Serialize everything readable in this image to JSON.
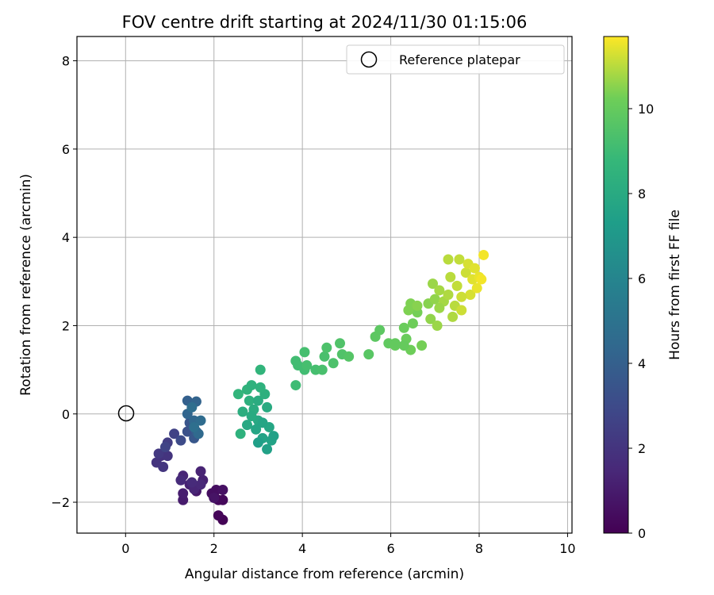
{
  "chart_data": {
    "type": "scatter",
    "title": "FOV centre drift starting at 2024/11/30 01:15:06",
    "xlabel": "Angular distance from reference (arcmin)",
    "ylabel": "Rotation from reference (arcmin)",
    "xlim": [
      -1.1,
      10.1
    ],
    "ylim": [
      -2.7,
      8.55
    ],
    "xticks": [
      "0",
      "2",
      "4",
      "6",
      "8",
      "10"
    ],
    "yticks": [
      "−2",
      "0",
      "2",
      "4",
      "6",
      "8"
    ],
    "grid": true,
    "legend": {
      "placement": "top-right",
      "entries": [
        "Reference platepar"
      ]
    },
    "reference_point": {
      "x": 0,
      "y": 0,
      "label": "Reference platepar"
    },
    "colorbar": {
      "label": "Hours from first FF file",
      "range": [
        0,
        11.7
      ],
      "ticks": [
        "0",
        "2",
        "4",
        "6",
        "8",
        "10"
      ],
      "colormap": "viridis"
    },
    "points": [
      {
        "x": 2.2,
        "y": -2.4,
        "t": 0.1
      },
      {
        "x": 2.1,
        "y": -2.3,
        "t": 0.2
      },
      {
        "x": 2.1,
        "y": -1.95,
        "t": 0.3
      },
      {
        "x": 2.2,
        "y": -1.95,
        "t": 0.3
      },
      {
        "x": 2.0,
        "y": -1.85,
        "t": 0.4
      },
      {
        "x": 1.95,
        "y": -1.8,
        "t": 0.5
      },
      {
        "x": 2.05,
        "y": -1.72,
        "t": 0.5
      },
      {
        "x": 2.2,
        "y": -1.72,
        "t": 0.6
      },
      {
        "x": 2.0,
        "y": -1.9,
        "t": 0.7
      },
      {
        "x": 1.6,
        "y": -1.75,
        "t": 0.9
      },
      {
        "x": 1.3,
        "y": -1.95,
        "t": 1.0
      },
      {
        "x": 1.3,
        "y": -1.8,
        "t": 1.1
      },
      {
        "x": 1.45,
        "y": -1.6,
        "t": 1.2
      },
      {
        "x": 1.75,
        "y": -1.5,
        "t": 1.2
      },
      {
        "x": 1.7,
        "y": -1.3,
        "t": 1.3
      },
      {
        "x": 1.3,
        "y": -1.4,
        "t": 1.4
      },
      {
        "x": 1.55,
        "y": -1.7,
        "t": 1.4
      },
      {
        "x": 1.7,
        "y": -1.6,
        "t": 1.5
      },
      {
        "x": 1.25,
        "y": -1.5,
        "t": 1.6
      },
      {
        "x": 1.5,
        "y": -1.55,
        "t": 1.6
      },
      {
        "x": 0.8,
        "y": -0.95,
        "t": 1.9
      },
      {
        "x": 0.95,
        "y": -0.95,
        "t": 2.0
      },
      {
        "x": 0.7,
        "y": -1.1,
        "t": 2.0
      },
      {
        "x": 0.85,
        "y": -1.2,
        "t": 2.1
      },
      {
        "x": 0.75,
        "y": -0.9,
        "t": 2.2
      },
      {
        "x": 0.95,
        "y": -0.65,
        "t": 2.4
      },
      {
        "x": 1.1,
        "y": -0.45,
        "t": 2.6
      },
      {
        "x": 0.9,
        "y": -0.75,
        "t": 2.7
      },
      {
        "x": 1.25,
        "y": -0.6,
        "t": 3.0
      },
      {
        "x": 1.4,
        "y": -0.4,
        "t": 3.3
      },
      {
        "x": 1.45,
        "y": -0.2,
        "t": 3.5
      },
      {
        "x": 1.55,
        "y": -0.55,
        "t": 3.6
      },
      {
        "x": 1.6,
        "y": -0.4,
        "t": 3.8
      },
      {
        "x": 1.4,
        "y": 0.3,
        "t": 4.0
      },
      {
        "x": 1.6,
        "y": 0.28,
        "t": 4.2
      },
      {
        "x": 1.4,
        "y": 0.0,
        "t": 4.3
      },
      {
        "x": 1.55,
        "y": -0.15,
        "t": 4.4
      },
      {
        "x": 1.65,
        "y": -0.45,
        "t": 4.5
      },
      {
        "x": 1.7,
        "y": -0.15,
        "t": 4.6
      },
      {
        "x": 1.5,
        "y": 0.15,
        "t": 4.7
      },
      {
        "x": 1.55,
        "y": -0.3,
        "t": 4.8
      },
      {
        "x": 2.55,
        "y": 0.45,
        "t": 8.6
      },
      {
        "x": 2.75,
        "y": 0.55,
        "t": 8.5
      },
      {
        "x": 2.85,
        "y": 0.65,
        "t": 8.4
      },
      {
        "x": 3.05,
        "y": 1.0,
        "t": 8.6
      },
      {
        "x": 2.8,
        "y": 0.3,
        "t": 8.3
      },
      {
        "x": 2.65,
        "y": 0.05,
        "t": 8.2
      },
      {
        "x": 2.6,
        "y": -0.45,
        "t": 8.4
      },
      {
        "x": 2.9,
        "y": 0.1,
        "t": 8.1
      },
      {
        "x": 3.0,
        "y": -0.15,
        "t": 7.9
      },
      {
        "x": 2.95,
        "y": -0.35,
        "t": 7.7
      },
      {
        "x": 3.1,
        "y": -0.55,
        "t": 7.6
      },
      {
        "x": 3.2,
        "y": -0.8,
        "t": 7.5
      },
      {
        "x": 3.3,
        "y": -0.6,
        "t": 7.6
      },
      {
        "x": 3.25,
        "y": -0.3,
        "t": 7.8
      },
      {
        "x": 3.2,
        "y": 0.15,
        "t": 8.0
      },
      {
        "x": 3.0,
        "y": 0.3,
        "t": 8.1
      },
      {
        "x": 2.85,
        "y": -0.05,
        "t": 8.0
      },
      {
        "x": 3.1,
        "y": -0.2,
        "t": 7.7
      },
      {
        "x": 3.0,
        "y": -0.65,
        "t": 7.4
      },
      {
        "x": 3.15,
        "y": 0.45,
        "t": 8.3
      },
      {
        "x": 2.75,
        "y": -0.25,
        "t": 7.9
      },
      {
        "x": 3.05,
        "y": 0.6,
        "t": 8.4
      },
      {
        "x": 3.35,
        "y": -0.5,
        "t": 7.5
      },
      {
        "x": 3.85,
        "y": 0.65,
        "t": 9.0
      },
      {
        "x": 3.9,
        "y": 1.1,
        "t": 9.1
      },
      {
        "x": 4.05,
        "y": 1.0,
        "t": 9.1
      },
      {
        "x": 4.05,
        "y": 1.4,
        "t": 9.2
      },
      {
        "x": 4.3,
        "y": 1.0,
        "t": 9.2
      },
      {
        "x": 4.45,
        "y": 1.0,
        "t": 9.3
      },
      {
        "x": 4.5,
        "y": 1.3,
        "t": 9.3
      },
      {
        "x": 4.55,
        "y": 1.5,
        "t": 9.4
      },
      {
        "x": 4.7,
        "y": 1.15,
        "t": 9.4
      },
      {
        "x": 4.85,
        "y": 1.6,
        "t": 9.5
      },
      {
        "x": 4.9,
        "y": 1.35,
        "t": 9.5
      },
      {
        "x": 5.05,
        "y": 1.3,
        "t": 9.6
      },
      {
        "x": 3.85,
        "y": 1.2,
        "t": 9.1
      },
      {
        "x": 4.1,
        "y": 1.1,
        "t": 9.2
      },
      {
        "x": 5.5,
        "y": 1.35,
        "t": 9.7
      },
      {
        "x": 5.65,
        "y": 1.75,
        "t": 9.8
      },
      {
        "x": 5.75,
        "y": 1.9,
        "t": 9.8
      },
      {
        "x": 5.95,
        "y": 1.6,
        "t": 9.9
      },
      {
        "x": 6.1,
        "y": 1.55,
        "t": 10.0
      },
      {
        "x": 6.3,
        "y": 1.95,
        "t": 10.1
      },
      {
        "x": 6.35,
        "y": 1.7,
        "t": 10.1
      },
      {
        "x": 6.45,
        "y": 1.45,
        "t": 10.2
      },
      {
        "x": 6.5,
        "y": 2.05,
        "t": 10.2
      },
      {
        "x": 6.6,
        "y": 2.3,
        "t": 10.3
      },
      {
        "x": 6.7,
        "y": 1.55,
        "t": 10.3
      },
      {
        "x": 6.4,
        "y": 2.35,
        "t": 10.4
      },
      {
        "x": 6.45,
        "y": 2.5,
        "t": 10.4
      },
      {
        "x": 6.6,
        "y": 2.45,
        "t": 10.5
      },
      {
        "x": 6.85,
        "y": 2.5,
        "t": 10.5
      },
      {
        "x": 6.9,
        "y": 2.15,
        "t": 10.6
      },
      {
        "x": 7.0,
        "y": 2.6,
        "t": 10.6
      },
      {
        "x": 6.95,
        "y": 2.95,
        "t": 10.7
      },
      {
        "x": 7.05,
        "y": 2.0,
        "t": 10.7
      },
      {
        "x": 7.1,
        "y": 2.8,
        "t": 10.8
      },
      {
        "x": 7.2,
        "y": 2.55,
        "t": 10.8
      },
      {
        "x": 7.3,
        "y": 2.7,
        "t": 10.9
      },
      {
        "x": 7.35,
        "y": 3.1,
        "t": 11.0
      },
      {
        "x": 7.3,
        "y": 3.5,
        "t": 11.0
      },
      {
        "x": 7.45,
        "y": 2.45,
        "t": 11.0
      },
      {
        "x": 7.5,
        "y": 2.9,
        "t": 11.1
      },
      {
        "x": 7.55,
        "y": 3.5,
        "t": 11.1
      },
      {
        "x": 7.6,
        "y": 2.35,
        "t": 11.2
      },
      {
        "x": 7.7,
        "y": 3.2,
        "t": 11.2
      },
      {
        "x": 7.75,
        "y": 3.4,
        "t": 11.3
      },
      {
        "x": 7.8,
        "y": 2.7,
        "t": 11.3
      },
      {
        "x": 7.85,
        "y": 3.05,
        "t": 11.4
      },
      {
        "x": 7.9,
        "y": 3.3,
        "t": 11.4
      },
      {
        "x": 7.95,
        "y": 2.85,
        "t": 11.5
      },
      {
        "x": 8.0,
        "y": 3.1,
        "t": 11.5
      },
      {
        "x": 8.1,
        "y": 3.6,
        "t": 11.6
      },
      {
        "x": 8.05,
        "y": 3.05,
        "t": 11.6
      },
      {
        "x": 7.4,
        "y": 2.2,
        "t": 10.9
      },
      {
        "x": 6.3,
        "y": 1.55,
        "t": 10.0
      },
      {
        "x": 7.1,
        "y": 2.4,
        "t": 10.7
      },
      {
        "x": 7.6,
        "y": 2.65,
        "t": 11.2
      },
      {
        "x": 6.1,
        "y": 1.6,
        "t": 9.95
      }
    ]
  }
}
